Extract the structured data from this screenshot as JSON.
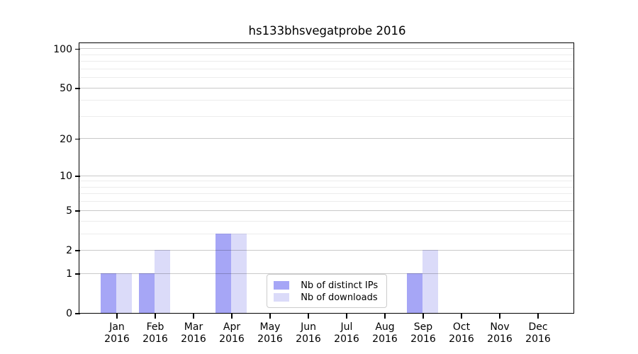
{
  "chart_data": {
    "type": "bar",
    "title": "hs133bhsvegatprobe 2016",
    "categories": [
      "Jan",
      "Feb",
      "Mar",
      "Apr",
      "May",
      "Jun",
      "Jul",
      "Aug",
      "Sep",
      "Oct",
      "Nov",
      "Dec"
    ],
    "x_sublabel": "2016",
    "series": [
      {
        "name": "Nb of distinct IPs",
        "color": "#a6a6f6",
        "values": [
          1,
          1,
          0,
          3,
          0,
          0,
          0,
          0,
          1,
          0,
          0,
          0
        ]
      },
      {
        "name": "Nb of downloads",
        "color": "#dbdbf9",
        "values": [
          1,
          2,
          0,
          3,
          0,
          0,
          0,
          0,
          2,
          0,
          0,
          0
        ]
      }
    ],
    "yscale": "log1p",
    "ylim": [
      0,
      110
    ],
    "yticks_major": [
      0,
      1,
      2,
      5,
      10,
      20,
      50,
      100
    ],
    "yticks_minor": [
      3,
      4,
      6,
      7,
      8,
      9,
      30,
      40,
      60,
      70,
      80,
      90
    ],
    "grid": true,
    "legend_position": "lower-center-inside"
  },
  "colors": {
    "background": "#ffffff",
    "axis": "#000000",
    "grid_major": "#c9c9c9",
    "grid_minor": "#ececec",
    "legend_border": "#cccccc",
    "bar_distinct_ips": "#a6a6f6",
    "bar_downloads": "#dbdbf9"
  }
}
